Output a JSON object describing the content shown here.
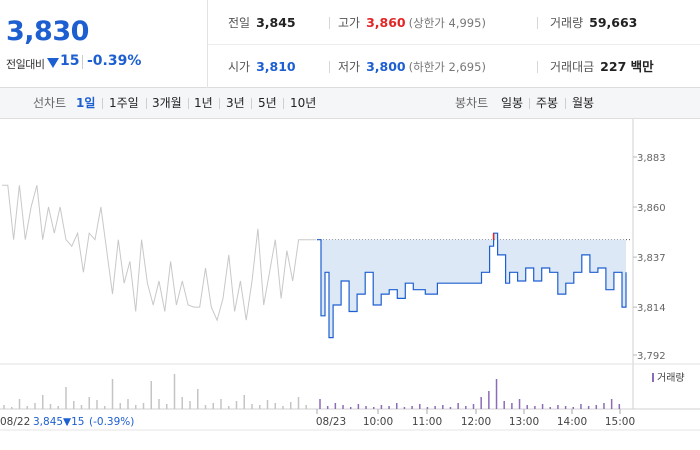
{
  "quote": {
    "current_price": "3,830",
    "prev_compare_label": "전일대비",
    "change_amount": "15",
    "change_rate": "-0.39%",
    "prev_close_label": "전일",
    "prev_close": "3,845",
    "high_label": "고가",
    "high": "3,860",
    "upper_limit": "(상한가 4,995)",
    "volume_label": "거래량",
    "volume": "59,663",
    "open_label": "시가",
    "open": "3,810",
    "low_label": "저가",
    "low": "3,800",
    "lower_limit": "(하한가 2,695)",
    "amount_label": "거래대금",
    "amount": "227 백만"
  },
  "toolbar": {
    "line_chart_label": "선차트",
    "periods": [
      "1일",
      "1주일",
      "3개월",
      "1년",
      "3년",
      "5년",
      "10년"
    ],
    "active_period": "1일",
    "candle_chart_label": "봉차트",
    "candles": [
      "일봉",
      "주봉",
      "월봉"
    ]
  },
  "colors": {
    "accent": "#1d5fd1",
    "up": "#e22626",
    "prev_day_line": "#c8c8c8",
    "today_fill": "#dde8f7",
    "volume_today": "#8c6bb8"
  },
  "chart_data": {
    "type": "line",
    "y_ticks": [
      "3,883",
      "3,860",
      "3,837",
      "3,814",
      "3,792"
    ],
    "ylim": [
      3792,
      3883
    ],
    "x_ticks": [
      "08/23",
      "10:00",
      "11:00",
      "12:00",
      "13:00",
      "14:00",
      "15:00"
    ],
    "footer_date": "08/22",
    "footer_price": "3,845",
    "footer_change": "▼15",
    "footer_rate": "(-0.39%)",
    "volume_legend": "거래량",
    "reference_price": 3845,
    "series": [
      {
        "x": [
          "09:00",
          "09:05",
          "09:10",
          "09:15",
          "09:20",
          "09:30",
          "09:40",
          "09:50",
          "10:00",
          "10:10",
          "10:20",
          "10:30",
          "10:40",
          "10:50",
          "11:00",
          "11:15",
          "11:30",
          "11:45",
          "12:00",
          "12:15",
          "12:25",
          "12:35",
          "12:40",
          "12:45",
          "12:55",
          "13:00",
          "13:10",
          "13:20",
          "13:30",
          "13:40",
          "13:50",
          "14:00",
          "14:10",
          "14:20",
          "14:30",
          "14:40",
          "14:50",
          "15:00",
          "15:10",
          "15:20",
          "15:25"
        ],
        "values": [
          3845,
          3810,
          3830,
          3800,
          3815,
          3826,
          3812,
          3820,
          3830,
          3815,
          3820,
          3822,
          3818,
          3825,
          3822,
          3820,
          3825,
          3825,
          3825,
          3825,
          3830,
          3842,
          3848,
          3838,
          3825,
          3830,
          3826,
          3832,
          3826,
          3832,
          3830,
          3820,
          3825,
          3830,
          3838,
          3830,
          3832,
          3822,
          3830,
          3814,
          3830
        ]
      }
    ]
  }
}
